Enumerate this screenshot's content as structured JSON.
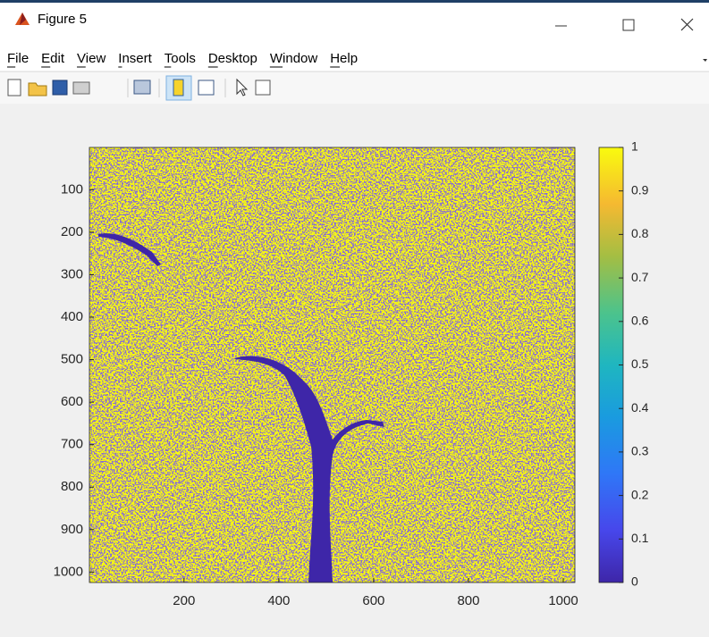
{
  "window": {
    "title": "Figure 5"
  },
  "menu": [
    "File",
    "Edit",
    "View",
    "Insert",
    "Tools",
    "Desktop",
    "Window",
    "Help"
  ],
  "axes": {
    "xlim": [
      0.5,
      1024.5
    ],
    "ylim": [
      0.5,
      1024.5
    ],
    "xticks": [
      200,
      400,
      600,
      800,
      1000
    ],
    "yticks": [
      100,
      200,
      300,
      400,
      500,
      600,
      700,
      800,
      900,
      1000
    ]
  },
  "colorbar": {
    "lim": [
      0,
      1
    ],
    "ticks": [
      0,
      0.1,
      0.2,
      0.3,
      0.4,
      0.5,
      0.6,
      0.7,
      0.8,
      0.9,
      1
    ]
  }
}
